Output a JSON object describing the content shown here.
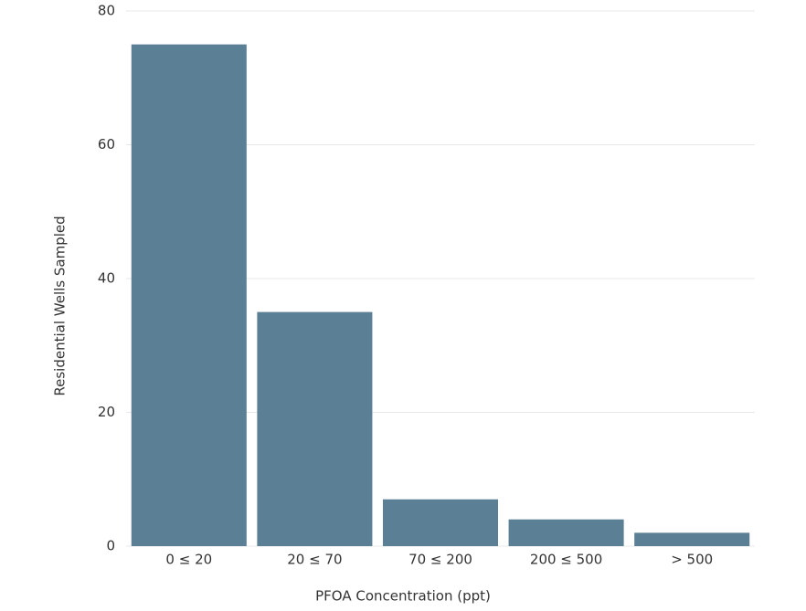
{
  "chart_data": {
    "type": "bar",
    "xlabel": "PFOA Concentration (ppt)",
    "ylabel": "Residential Wells Sampled",
    "categories": [
      "0 ≤ 20",
      "20 ≤ 70",
      "70 ≤ 200",
      "200 ≤ 500",
      "> 500"
    ],
    "values": [
      75,
      35,
      7,
      4,
      2
    ],
    "color": "#5b7f95",
    "ylim": [
      0,
      80
    ],
    "yticks": [
      0,
      20,
      40,
      60,
      80
    ],
    "grid": true
  }
}
